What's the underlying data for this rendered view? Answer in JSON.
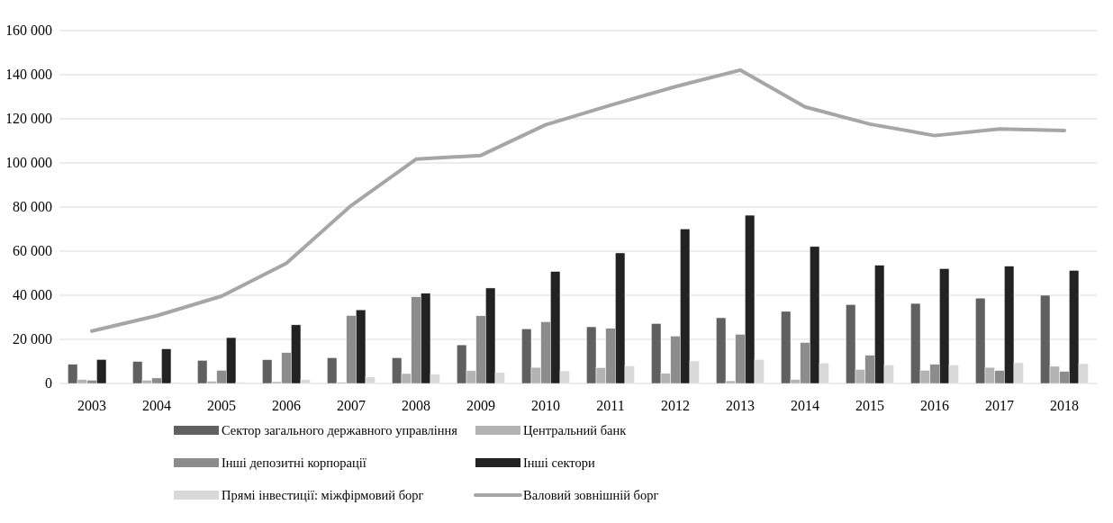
{
  "chart_data": {
    "type": "bar",
    "categories": [
      "2003",
      "2004",
      "2005",
      "2006",
      "2007",
      "2008",
      "2009",
      "2010",
      "2011",
      "2012",
      "2013",
      "2014",
      "2015",
      "2016",
      "2017",
      "2018"
    ],
    "series": [
      {
        "name": "Сектор загального державного управління",
        "color": "#606060",
        "values": [
          8700,
          10000,
          10500,
          10800,
          11700,
          11700,
          17500,
          24800,
          25700,
          27200,
          29800,
          32700,
          35800,
          36300,
          38700,
          40000
        ]
      },
      {
        "name": "Центральний банк",
        "color": "#b3b3b3",
        "values": [
          1800,
          1500,
          1000,
          800,
          500,
          4500,
          5800,
          7300,
          7200,
          4600,
          1200,
          1800,
          6400,
          6000,
          7300,
          7800
        ]
      },
      {
        "name": "Інші депозитні корпорації",
        "color": "#8c8c8c",
        "values": [
          1500,
          2500,
          6000,
          14000,
          30800,
          39300,
          30700,
          28000,
          25000,
          21500,
          22300,
          18600,
          12800,
          8700,
          5900,
          5500
        ]
      },
      {
        "name": "Інші сектори",
        "color": "#222222",
        "values": [
          10900,
          15700,
          20800,
          26600,
          33400,
          40900,
          43300,
          50800,
          59200,
          70100,
          76300,
          62100,
          53600,
          52100,
          53200,
          51300
        ]
      },
      {
        "name": "Прямі інвестиції: міжфірмовий борг",
        "color": "#d9d9d9",
        "values": [
          null,
          500,
          600,
          1800,
          3000,
          4200,
          5000,
          5700,
          8000,
          10200,
          10900,
          9300,
          8400,
          8400,
          9400,
          9000
        ]
      },
      {
        "name": "Валовий  зовнішній борг",
        "type": "line",
        "color": "#a6a6a6",
        "values": [
          23800,
          30700,
          39600,
          54500,
          80700,
          101700,
          103400,
          117300,
          126200,
          134600,
          142100,
          125400,
          117600,
          112400,
          115400,
          114700
        ]
      }
    ],
    "ylim": [
      0,
      160000
    ],
    "yticks": [
      {
        "value": 0,
        "label": "0"
      },
      {
        "value": 20000,
        "label": "20 000"
      },
      {
        "value": 40000,
        "label": "40 000"
      },
      {
        "value": 60000,
        "label": "60 000"
      },
      {
        "value": 80000,
        "label": "80 000"
      },
      {
        "value": 100000,
        "label": "100 000"
      },
      {
        "value": 120000,
        "label": "120 000"
      },
      {
        "value": 140000,
        "label": "140 000"
      },
      {
        "value": 160000,
        "label": "160 000"
      }
    ],
    "grid": "y",
    "legend": "bottom",
    "line_style": "solid",
    "marker": "none"
  }
}
